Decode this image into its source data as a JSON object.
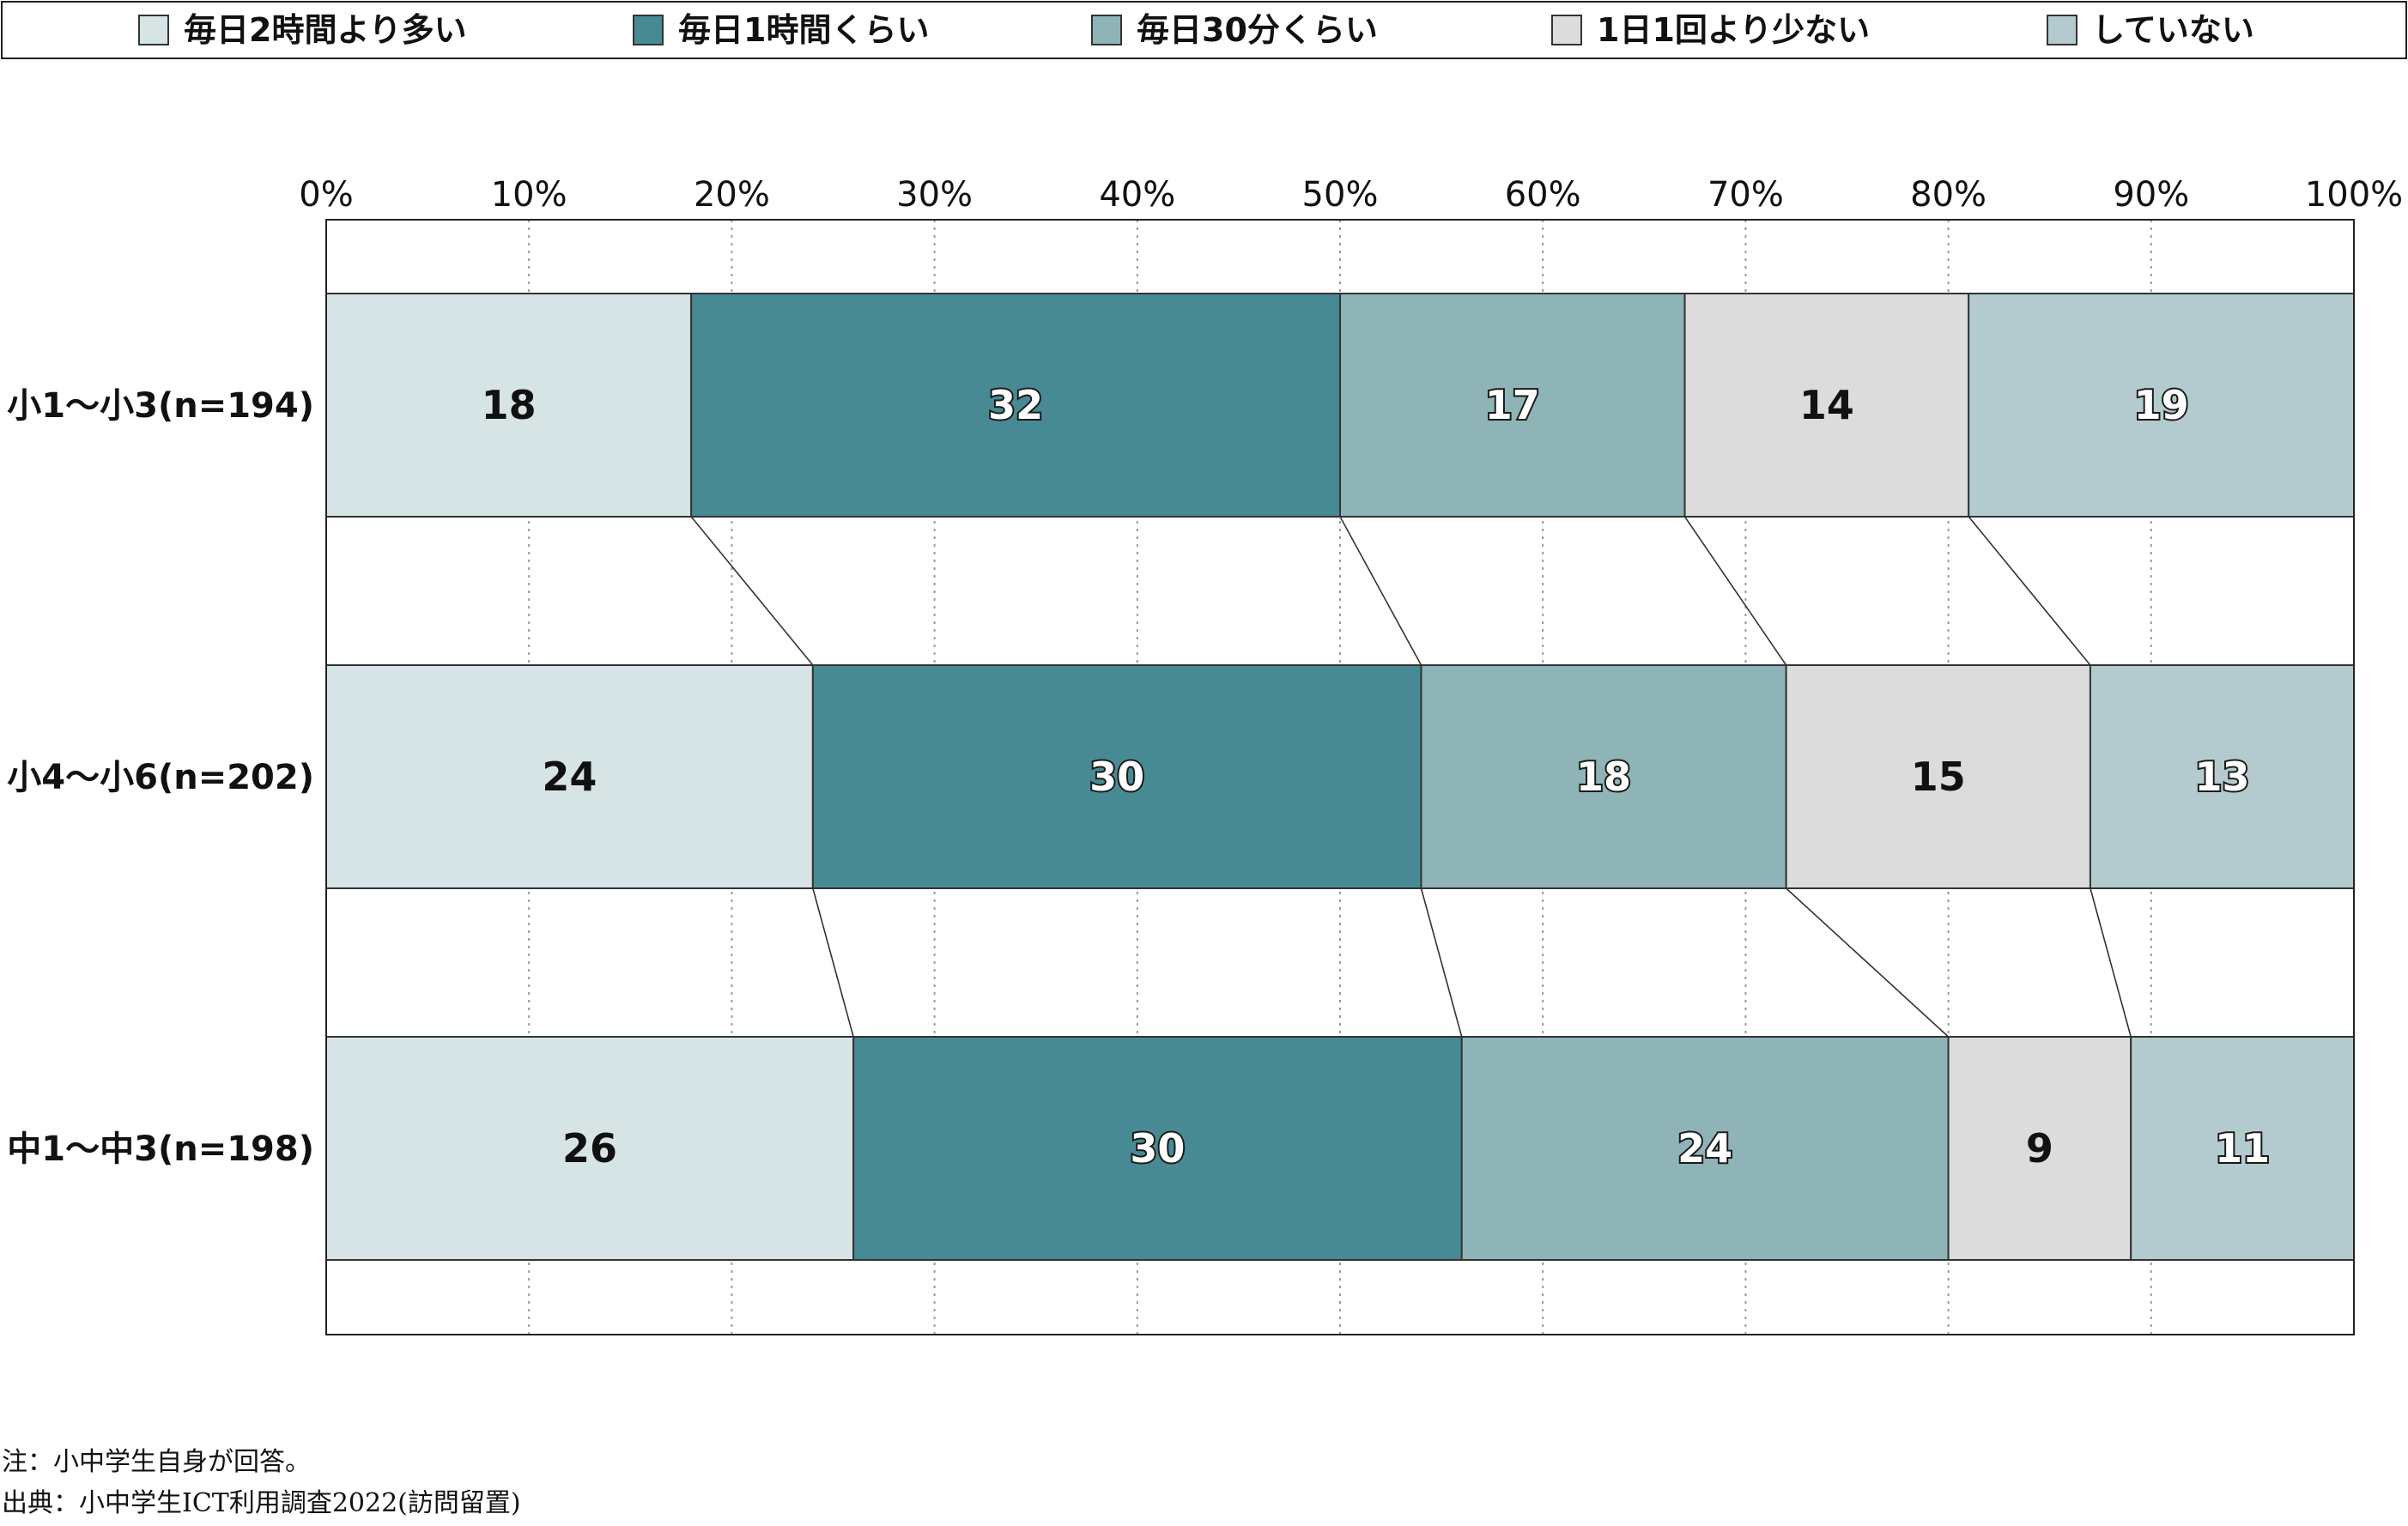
{
  "chart_data": {
    "type": "bar",
    "orientation": "horizontal",
    "stacked": true,
    "percent": true,
    "categories": [
      "小1〜小3(n=194)",
      "小4〜小6(n=202)",
      "中1〜中3(n=198)"
    ],
    "series": [
      {
        "name": "毎日2時間より多い",
        "color": "#d6e4e5",
        "label_color": "#111111",
        "values": [
          18,
          24,
          26
        ]
      },
      {
        "name": "毎日1時間くらい",
        "color": "#488a93",
        "label_color": "#ffffff",
        "values": [
          32,
          30,
          30
        ]
      },
      {
        "name": "毎日30分くらい",
        "color": "#8fb4b8",
        "label_color": "#ffffff",
        "values": [
          17,
          18,
          24
        ]
      },
      {
        "name": "1日1回より少ない",
        "color": "#dcdcdc",
        "label_color": "#111111",
        "values": [
          14,
          15,
          9
        ]
      },
      {
        "name": "していない",
        "color": "#b3cbce",
        "label_color": "#ffffff",
        "values": [
          19,
          13,
          11
        ]
      }
    ],
    "x_ticks": [
      "0%",
      "10%",
      "20%",
      "30%",
      "40%",
      "50%",
      "60%",
      "70%",
      "80%",
      "90%",
      "100%"
    ],
    "xlim": [
      0,
      100
    ],
    "grid": "dotted vertical",
    "legend_position": "top",
    "connector_lines": true
  },
  "notes": {
    "note": "注：小中学生自身が回答。",
    "source": "出典：小中学生ICT利用調査2022(訪問留置)"
  }
}
